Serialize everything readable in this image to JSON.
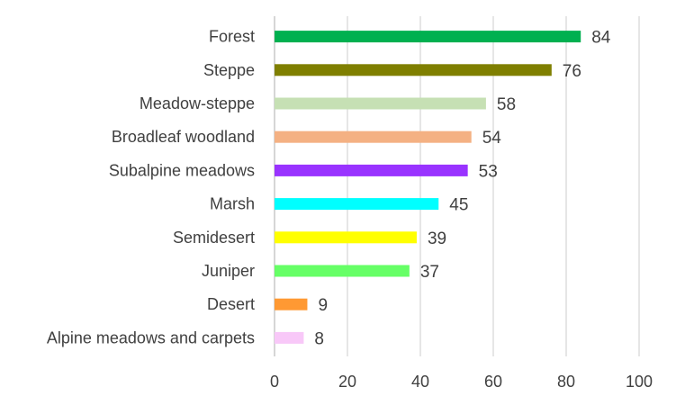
{
  "chart_data": {
    "type": "bar",
    "orientation": "horizontal",
    "title": "",
    "xlabel": "",
    "ylabel": "",
    "xlim": [
      0,
      100
    ],
    "x_ticks": [
      0,
      20,
      40,
      60,
      80,
      100
    ],
    "grid": "vertical",
    "legend": "none",
    "categories": [
      "Forest",
      "Steppe",
      "Meadow-steppe",
      "Broadleaf woodland",
      "Subalpine meadows",
      "Marsh",
      "Semidesert",
      "Juniper",
      "Desert",
      "Alpine meadows and carpets"
    ],
    "values": [
      84,
      76,
      58,
      54,
      53,
      45,
      39,
      37,
      9,
      8
    ],
    "colors": [
      "#00b050",
      "#7f7f00",
      "#c6e0b4",
      "#f4b183",
      "#9933ff",
      "#00ffff",
      "#ffff00",
      "#66ff66",
      "#ff9933",
      "#f8c8f8"
    ],
    "data_labels": true
  }
}
